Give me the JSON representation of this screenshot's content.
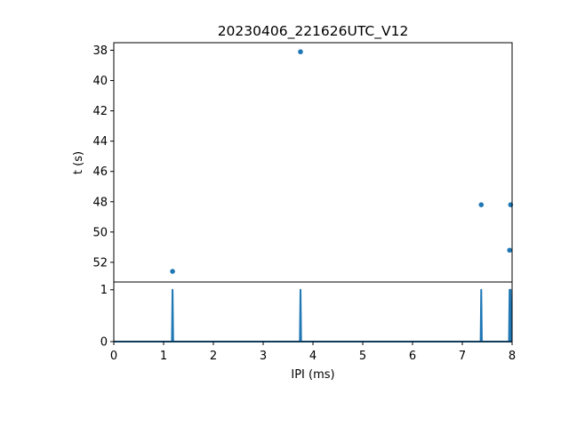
{
  "chart_data": [
    {
      "type": "scatter",
      "title": "20230406_221626UTC_V12",
      "xlabel": "",
      "ylabel": "t (s)",
      "xlim": [
        0,
        8
      ],
      "ylim": [
        53.3,
        37.5
      ],
      "y_inverted": true,
      "yticks": [
        38,
        40,
        42,
        44,
        46,
        48,
        50,
        52
      ],
      "series": [
        {
          "color": "#1f77b4",
          "x": [
            3.75,
            1.18,
            7.38,
            7.97,
            7.95
          ],
          "y": [
            38.1,
            52.6,
            48.2,
            48.2,
            51.2
          ]
        }
      ]
    },
    {
      "type": "line",
      "xlabel": "IPI (ms)",
      "ylabel": "",
      "xlim": [
        0,
        8
      ],
      "ylim": [
        0,
        1.15
      ],
      "xticks": [
        0,
        1,
        2,
        3,
        4,
        5,
        6,
        7,
        8
      ],
      "yticks": [
        0,
        1
      ],
      "series": [
        {
          "color": "#1f77b4",
          "peaks_x": [
            1.18,
            3.75,
            7.38,
            7.95,
            7.97
          ],
          "peak_height": 1
        }
      ]
    }
  ]
}
